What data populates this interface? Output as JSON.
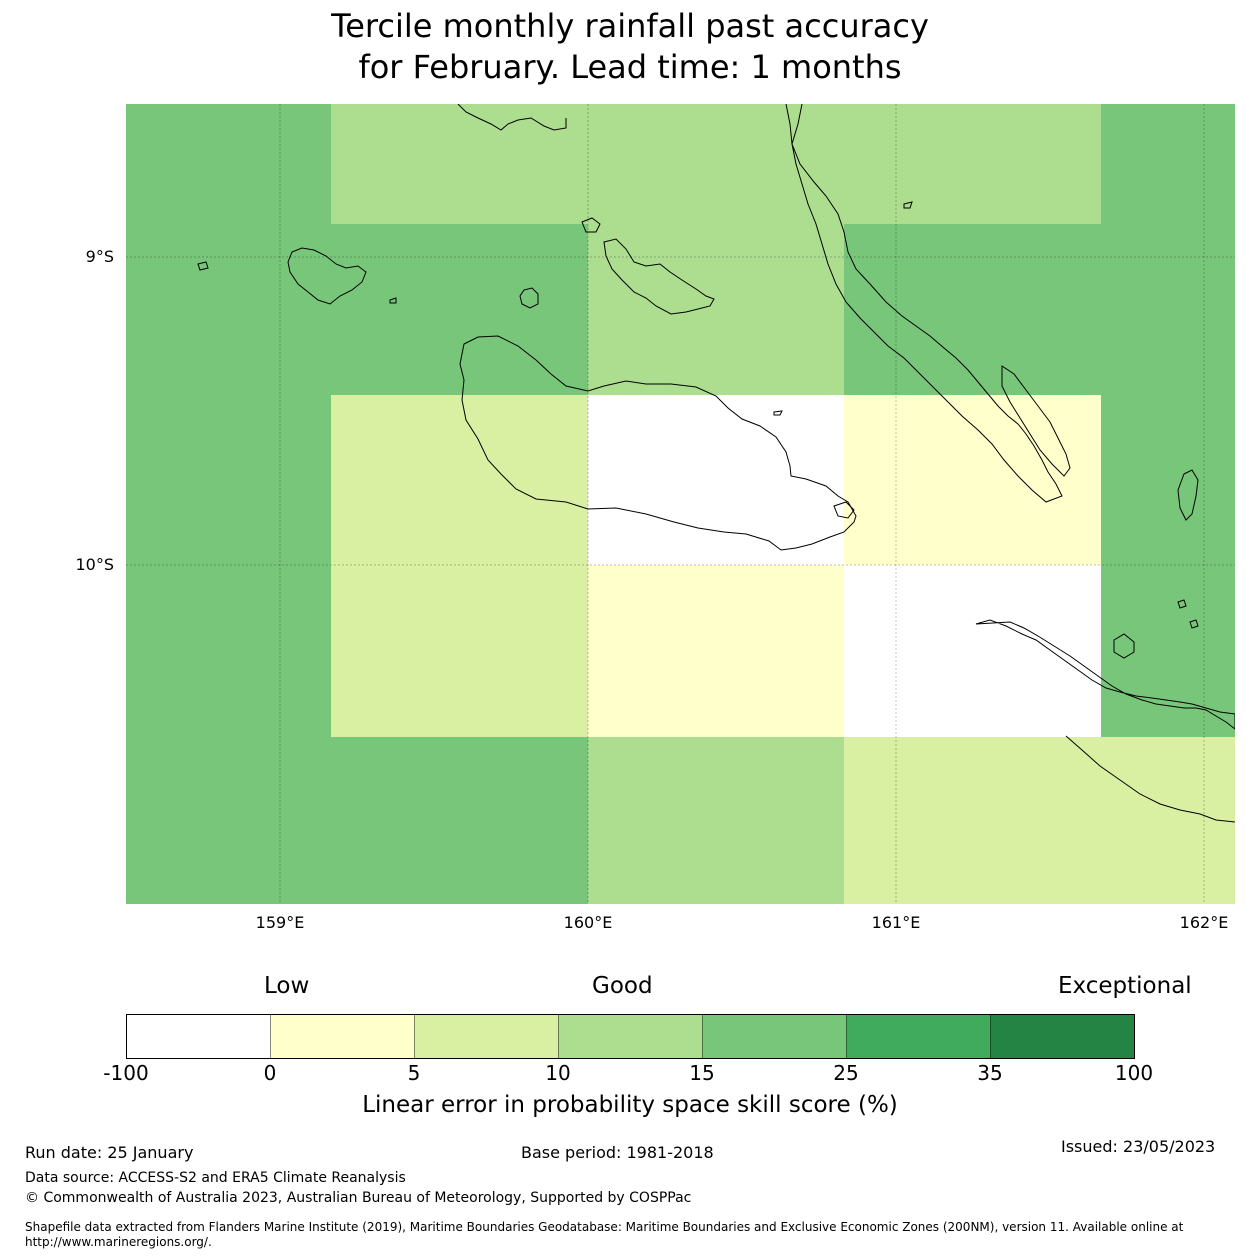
{
  "title_line1": "Tercile monthly rainfall past accuracy",
  "title_line2": "for February. Lead time: 1 months",
  "map": {
    "lat_labels": [
      "9°S",
      "10°S"
    ],
    "lon_labels": [
      "159°E",
      "160°E",
      "161°E",
      "162°E"
    ],
    "grid_cells": [
      {
        "row": 0,
        "col": 0,
        "value_class": 4
      },
      {
        "row": 0,
        "col": 1,
        "value_class": 3
      },
      {
        "row": 0,
        "col": 2,
        "value_class": 3
      },
      {
        "row": 0,
        "col": 3,
        "value_class": 3
      },
      {
        "row": 0,
        "col": 4,
        "value_class": 4
      },
      {
        "row": 1,
        "col": 0,
        "value_class": 4
      },
      {
        "row": 1,
        "col": 1,
        "value_class": 4
      },
      {
        "row": 1,
        "col": 2,
        "value_class": 3
      },
      {
        "row": 1,
        "col": 3,
        "value_class": 4
      },
      {
        "row": 1,
        "col": 4,
        "value_class": 4
      },
      {
        "row": 2,
        "col": 0,
        "value_class": 4
      },
      {
        "row": 2,
        "col": 1,
        "value_class": 2
      },
      {
        "row": 2,
        "col": 2,
        "value_class": 0
      },
      {
        "row": 2,
        "col": 3,
        "value_class": 1
      },
      {
        "row": 2,
        "col": 4,
        "value_class": 4
      },
      {
        "row": 3,
        "col": 0,
        "value_class": 4
      },
      {
        "row": 3,
        "col": 1,
        "value_class": 2
      },
      {
        "row": 3,
        "col": 2,
        "value_class": 1
      },
      {
        "row": 3,
        "col": 3,
        "value_class": 0
      },
      {
        "row": 3,
        "col": 4,
        "value_class": 4
      },
      {
        "row": 4,
        "col": 0,
        "value_class": 4
      },
      {
        "row": 4,
        "col": 1,
        "value_class": 4
      },
      {
        "row": 4,
        "col": 2,
        "value_class": 3
      },
      {
        "row": 4,
        "col": 3,
        "value_class": 2
      },
      {
        "row": 4,
        "col": 4,
        "value_class": 2
      }
    ]
  },
  "colorbar": {
    "head_low": "Low",
    "head_good": "Good",
    "head_exceptional": "Exceptional",
    "ticks": [
      "-100",
      "0",
      "5",
      "10",
      "15",
      "25",
      "35",
      "100"
    ],
    "colors": [
      "#ffffff",
      "#ffffcc",
      "#d9f0a3",
      "#addd8e",
      "#78c679",
      "#41ab5d",
      "#238443"
    ],
    "label": "Linear error in probability space skill score (%)"
  },
  "footer": {
    "run_date": "Run date: 25 January",
    "base_period": "Base period: 1981-2018",
    "issued": "Issued: 23/05/2023",
    "data_source": "Data source: ACCESS-S2 and ERA5 Climate Reanalysis",
    "copyright": "© Commonwealth of Australia 2023, Australian Bureau of Meteorology, Supported by COSPPac",
    "shapefile": "Shapefile data extracted from Flanders Marine Institute (2019), Maritime Boundaries Geodatabase: Maritime Boundaries and Exclusive Economic Zones (200NM), version 11. Available online at http://www.marineregions.org/."
  }
}
